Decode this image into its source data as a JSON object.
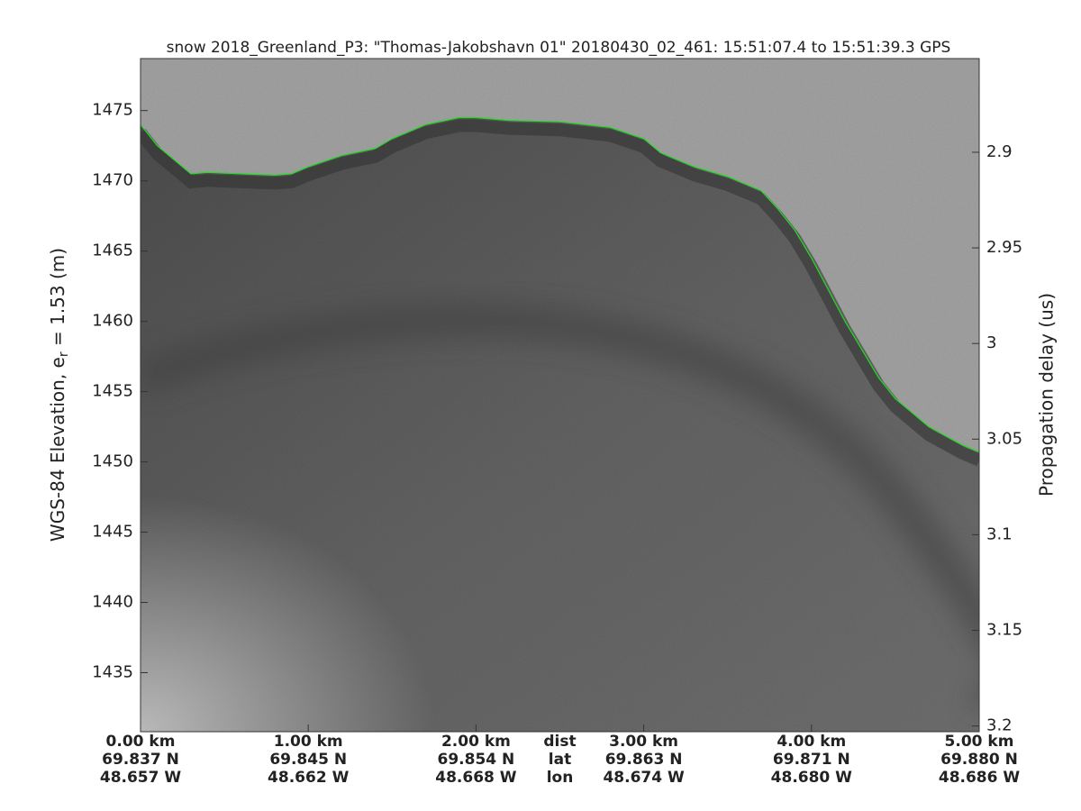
{
  "chart_data": {
    "type": "echogram",
    "title": "snow 2018_Greenland_P3: \"Thomas-Jakobshavn 01\"  20180430_02_461: 15:51:07.4 to 15:51:39.3 GPS",
    "ylabel": [
      "WGS-84 Elevation, e",
      "r",
      " = 1.53 (m)"
    ],
    "y2label": "Propagation delay (us)",
    "xlim": [
      0,
      5
    ],
    "ylim": [
      1430.8,
      1478.7
    ],
    "yticks": [
      1435,
      1440,
      1445,
      1450,
      1455,
      1460,
      1465,
      1470,
      1475
    ],
    "y2lim": [
      3.203,
      2.851
    ],
    "y2ticks": [
      2.9,
      2.95,
      3,
      3.05,
      3.1,
      3.15,
      3.2
    ],
    "xticks": [
      {
        "value": 0,
        "label": "0.00 km",
        "lat": "69.837 N",
        "lon": "48.657 W"
      },
      {
        "value": 1,
        "label": "1.00 km",
        "lat": "69.845 N",
        "lon": "48.662 W"
      },
      {
        "value": 2,
        "label": "2.00 km",
        "lat": "69.854 N",
        "lon": "48.668 W"
      },
      {
        "value": 3,
        "label": "3.00 km",
        "lat": "69.863 N",
        "lon": "48.674 W"
      },
      {
        "value": 4,
        "label": "4.00 km",
        "lat": "69.871 N",
        "lon": "48.680 W"
      },
      {
        "value": 5,
        "label": "5.00 km",
        "lat": "69.880 N",
        "lon": "48.686 W"
      }
    ],
    "row_labels": [
      "dist",
      "lat",
      "lon"
    ],
    "series": [
      {
        "name": "surface",
        "color": "#22dd22",
        "x": [
          0,
          0.1,
          0.2,
          0.3,
          0.4,
          0.6,
          0.8,
          0.9,
          1.0,
          1.2,
          1.4,
          1.5,
          1.7,
          1.9,
          2.0,
          2.2,
          2.5,
          2.8,
          3.0,
          3.1,
          3.3,
          3.5,
          3.7,
          3.8,
          3.9,
          4.0,
          4.2,
          4.4,
          4.5,
          4.7,
          4.9,
          5.0
        ],
        "values": [
          1474,
          1472.5,
          1471.5,
          1470.5,
          1470.6,
          1470.5,
          1470.4,
          1470.5,
          1471,
          1471.8,
          1472.3,
          1473,
          1474,
          1474.5,
          1474.5,
          1474.3,
          1474.2,
          1473.8,
          1473,
          1472,
          1471,
          1470.3,
          1469.3,
          1468,
          1466.5,
          1464.5,
          1460,
          1456,
          1454.5,
          1452.5,
          1451.2,
          1450.7
        ]
      }
    ]
  }
}
